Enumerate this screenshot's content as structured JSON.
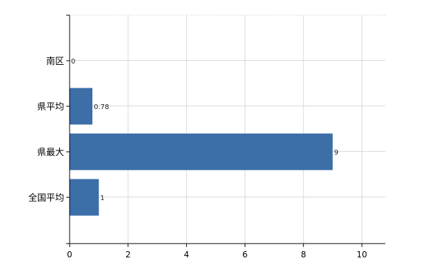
{
  "chart_data": {
    "type": "bar",
    "orientation": "horizontal",
    "categories": [
      "南区",
      "県平均",
      "県最大",
      "全国平均"
    ],
    "values": [
      0,
      0.78,
      9,
      1
    ],
    "data_labels": [
      "0",
      "0.78",
      "9",
      "1"
    ],
    "xlim": [
      0,
      10.8
    ],
    "xticks": [
      "0",
      "2",
      "4",
      "6",
      "8",
      "10"
    ],
    "grid": true,
    "bar_color": "#3c6ea8",
    "title": "",
    "xlabel": "",
    "ylabel": ""
  }
}
